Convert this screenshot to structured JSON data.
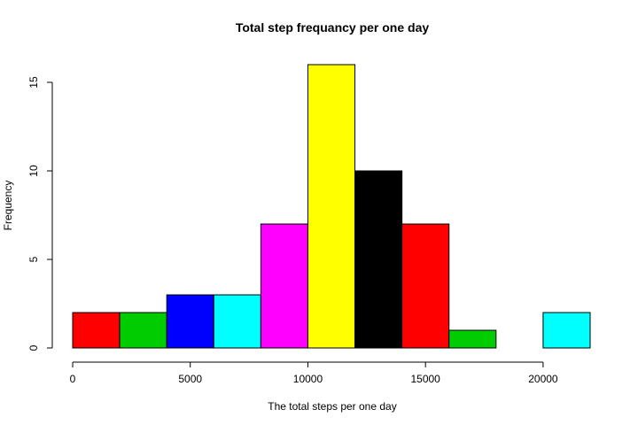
{
  "chart_data": {
    "type": "bar",
    "title": "Total step frequancy per one day",
    "xlabel": "The total steps per one day",
    "ylabel": "Frequency",
    "bins": [
      {
        "x_start": 0,
        "x_end": 2000,
        "frequency": 2,
        "color": "#ff0000"
      },
      {
        "x_start": 2000,
        "x_end": 4000,
        "frequency": 2,
        "color": "#00cd00"
      },
      {
        "x_start": 4000,
        "x_end": 6000,
        "frequency": 3,
        "color": "#0000ff"
      },
      {
        "x_start": 6000,
        "x_end": 8000,
        "frequency": 3,
        "color": "#00ffff"
      },
      {
        "x_start": 8000,
        "x_end": 10000,
        "frequency": 7,
        "color": "#ff00ff"
      },
      {
        "x_start": 10000,
        "x_end": 12000,
        "frequency": 16,
        "color": "#ffff00"
      },
      {
        "x_start": 12000,
        "x_end": 14000,
        "frequency": 10,
        "color": "#000000"
      },
      {
        "x_start": 14000,
        "x_end": 16000,
        "frequency": 7,
        "color": "#ff0000"
      },
      {
        "x_start": 16000,
        "x_end": 18000,
        "frequency": 1,
        "color": "#00cd00"
      },
      {
        "x_start": 18000,
        "x_end": 20000,
        "frequency": 0,
        "color": "#0000ff"
      },
      {
        "x_start": 20000,
        "x_end": 22000,
        "frequency": 2,
        "color": "#00ffff"
      }
    ],
    "x_ticks": [
      0,
      5000,
      10000,
      15000,
      20000
    ],
    "x_tick_labels": [
      "0",
      "5000",
      "10000",
      "15000",
      "20000"
    ],
    "y_ticks": [
      0,
      5,
      10,
      15
    ],
    "y_tick_labels": [
      "0",
      "5",
      "10",
      "15"
    ],
    "xlim": [
      0,
      22000
    ],
    "ylim": [
      0,
      16
    ],
    "grid": false,
    "legend": "none"
  }
}
